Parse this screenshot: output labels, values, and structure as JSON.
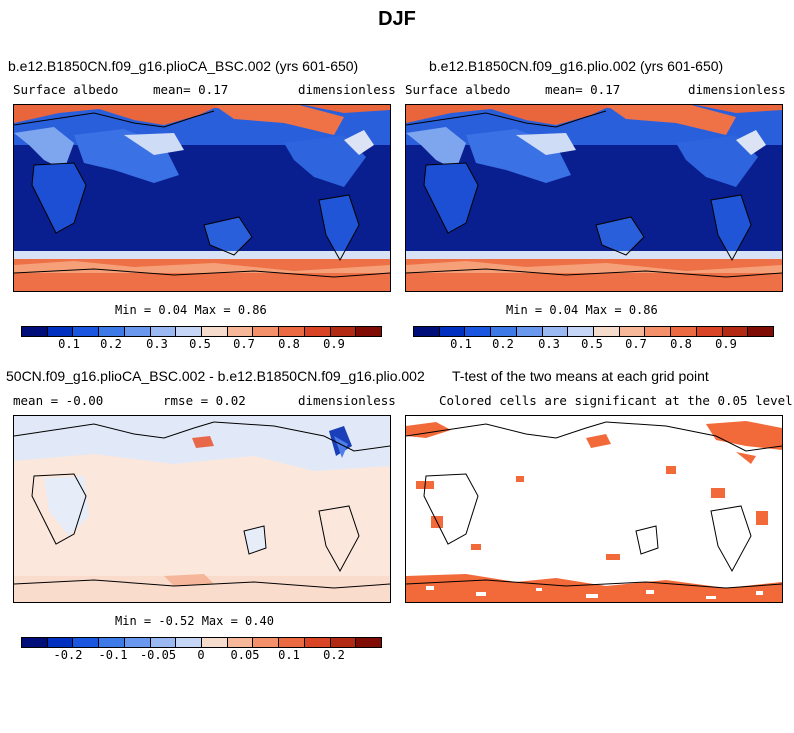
{
  "main_title": "DJF",
  "panels": {
    "p1": {
      "title": "b.e12.B1850CN.f09_g16.plioCA_BSC.002 (yrs 601-650)",
      "variable": "Surface albedo",
      "mean": "mean=   0.17",
      "units": "dimensionless",
      "minmax": "Min =   0.04 Max =   0.86"
    },
    "p2": {
      "title": "b.e12.B1850CN.f09_g16.plio.002 (yrs 601-650)",
      "variable": "Surface albedo",
      "mean": "mean=   0.17",
      "units": "dimensionless",
      "minmax": "Min =   0.04 Max =   0.86"
    },
    "p3": {
      "title": "50CN.f09_g16.plioCA_BSC.002 - b.e12.B1850CN.f09_g16.plio.002",
      "mean": "mean =  -0.00",
      "rmse": "rmse =   0.02",
      "units": "dimensionless",
      "minmax": "Min =  -0.52 Max =   0.40"
    },
    "p4": {
      "title": "T-test of the two means at each grid point",
      "subtitle": "Colored cells are significant at the 0.05 level"
    }
  },
  "colorbar_top": {
    "colors": [
      "#000e7a",
      "#0030c0",
      "#1a56e0",
      "#3e79e8",
      "#6a98ee",
      "#9ab8f2",
      "#c6d6f7",
      "#f5dccc",
      "#f7b89a",
      "#f4906a",
      "#ec6a42",
      "#d94426",
      "#b32a14",
      "#7f0c05"
    ],
    "labels": [
      "0.1",
      "0.2",
      "0.3",
      "0.5",
      "0.7",
      "0.8",
      "0.9"
    ]
  },
  "colorbar_diff": {
    "colors": [
      "#000e7a",
      "#0030c0",
      "#1a56e0",
      "#3e79e8",
      "#6a98ee",
      "#9ab8f2",
      "#c6d6f7",
      "#f5dccc",
      "#f7b89a",
      "#f4906a",
      "#ec6a42",
      "#d94426",
      "#b32a14",
      "#7f0c05"
    ],
    "labels": [
      "-0.2",
      "-0.1",
      "-0.05",
      "0",
      "0.05",
      "0.1",
      "0.2"
    ]
  },
  "chart_data": [
    {
      "type": "heatmap",
      "title": "b.e12.B1850CN.f09_g16.plioCA_BSC.002 (yrs 601-650)",
      "variable": "Surface albedo",
      "season": "DJF",
      "mean": 0.17,
      "min": 0.04,
      "max": 0.86,
      "colorbar_ticks": [
        0.1,
        0.2,
        0.3,
        0.5,
        0.7,
        0.8,
        0.9
      ]
    },
    {
      "type": "heatmap",
      "title": "b.e12.B1850CN.f09_g16.plio.002 (yrs 601-650)",
      "variable": "Surface albedo",
      "season": "DJF",
      "mean": 0.17,
      "min": 0.04,
      "max": 0.86,
      "colorbar_ticks": [
        0.1,
        0.2,
        0.3,
        0.5,
        0.7,
        0.8,
        0.9
      ]
    },
    {
      "type": "heatmap",
      "title": "50CN.f09_g16.plioCA_BSC.002 - b.e12.B1850CN.f09_g16.plio.002",
      "mean": -0.0,
      "rmse": 0.02,
      "min": -0.52,
      "max": 0.4,
      "colorbar_ticks": [
        -0.2,
        -0.1,
        -0.05,
        0,
        0.05,
        0.1,
        0.2
      ]
    },
    {
      "type": "heatmap",
      "title": "T-test of the two means at each grid point",
      "subtitle": "Colored cells are significant at the 0.05 level",
      "significance_level": 0.05
    }
  ]
}
